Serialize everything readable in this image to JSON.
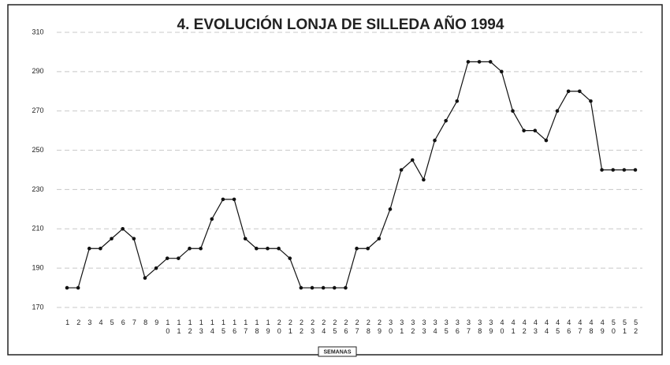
{
  "chart_data": {
    "type": "line",
    "title": "4. EVOLUCIÓN LONJA DE SILLEDA AÑO 1994",
    "x_label": "SEMANAS",
    "categories": [
      "1",
      "2",
      "3",
      "4",
      "5",
      "6",
      "7",
      "8",
      "9",
      "10",
      "11",
      "12",
      "13",
      "14",
      "15",
      "16",
      "17",
      "18",
      "19",
      "20",
      "21",
      "22",
      "23",
      "24",
      "25",
      "26",
      "27",
      "28",
      "29",
      "30",
      "31",
      "32",
      "33",
      "34",
      "35",
      "36",
      "37",
      "38",
      "39",
      "40",
      "41",
      "42",
      "43",
      "44",
      "45",
      "46",
      "47",
      "48",
      "49",
      "50",
      "51",
      "52"
    ],
    "values": [
      180,
      180,
      200,
      200,
      205,
      210,
      205,
      185,
      190,
      195,
      195,
      200,
      200,
      215,
      225,
      225,
      205,
      200,
      200,
      200,
      195,
      180,
      180,
      180,
      180,
      180,
      200,
      200,
      205,
      220,
      240,
      245,
      235,
      255,
      265,
      275,
      295,
      295,
      295,
      290,
      270,
      260,
      260,
      255,
      270,
      280,
      280,
      275,
      240,
      240,
      240,
      240
    ],
    "color": "#111111",
    "ylim": [
      170,
      310
    ],
    "yticks": [
      170,
      190,
      210,
      230,
      250,
      270,
      290,
      310
    ],
    "grid": true
  }
}
